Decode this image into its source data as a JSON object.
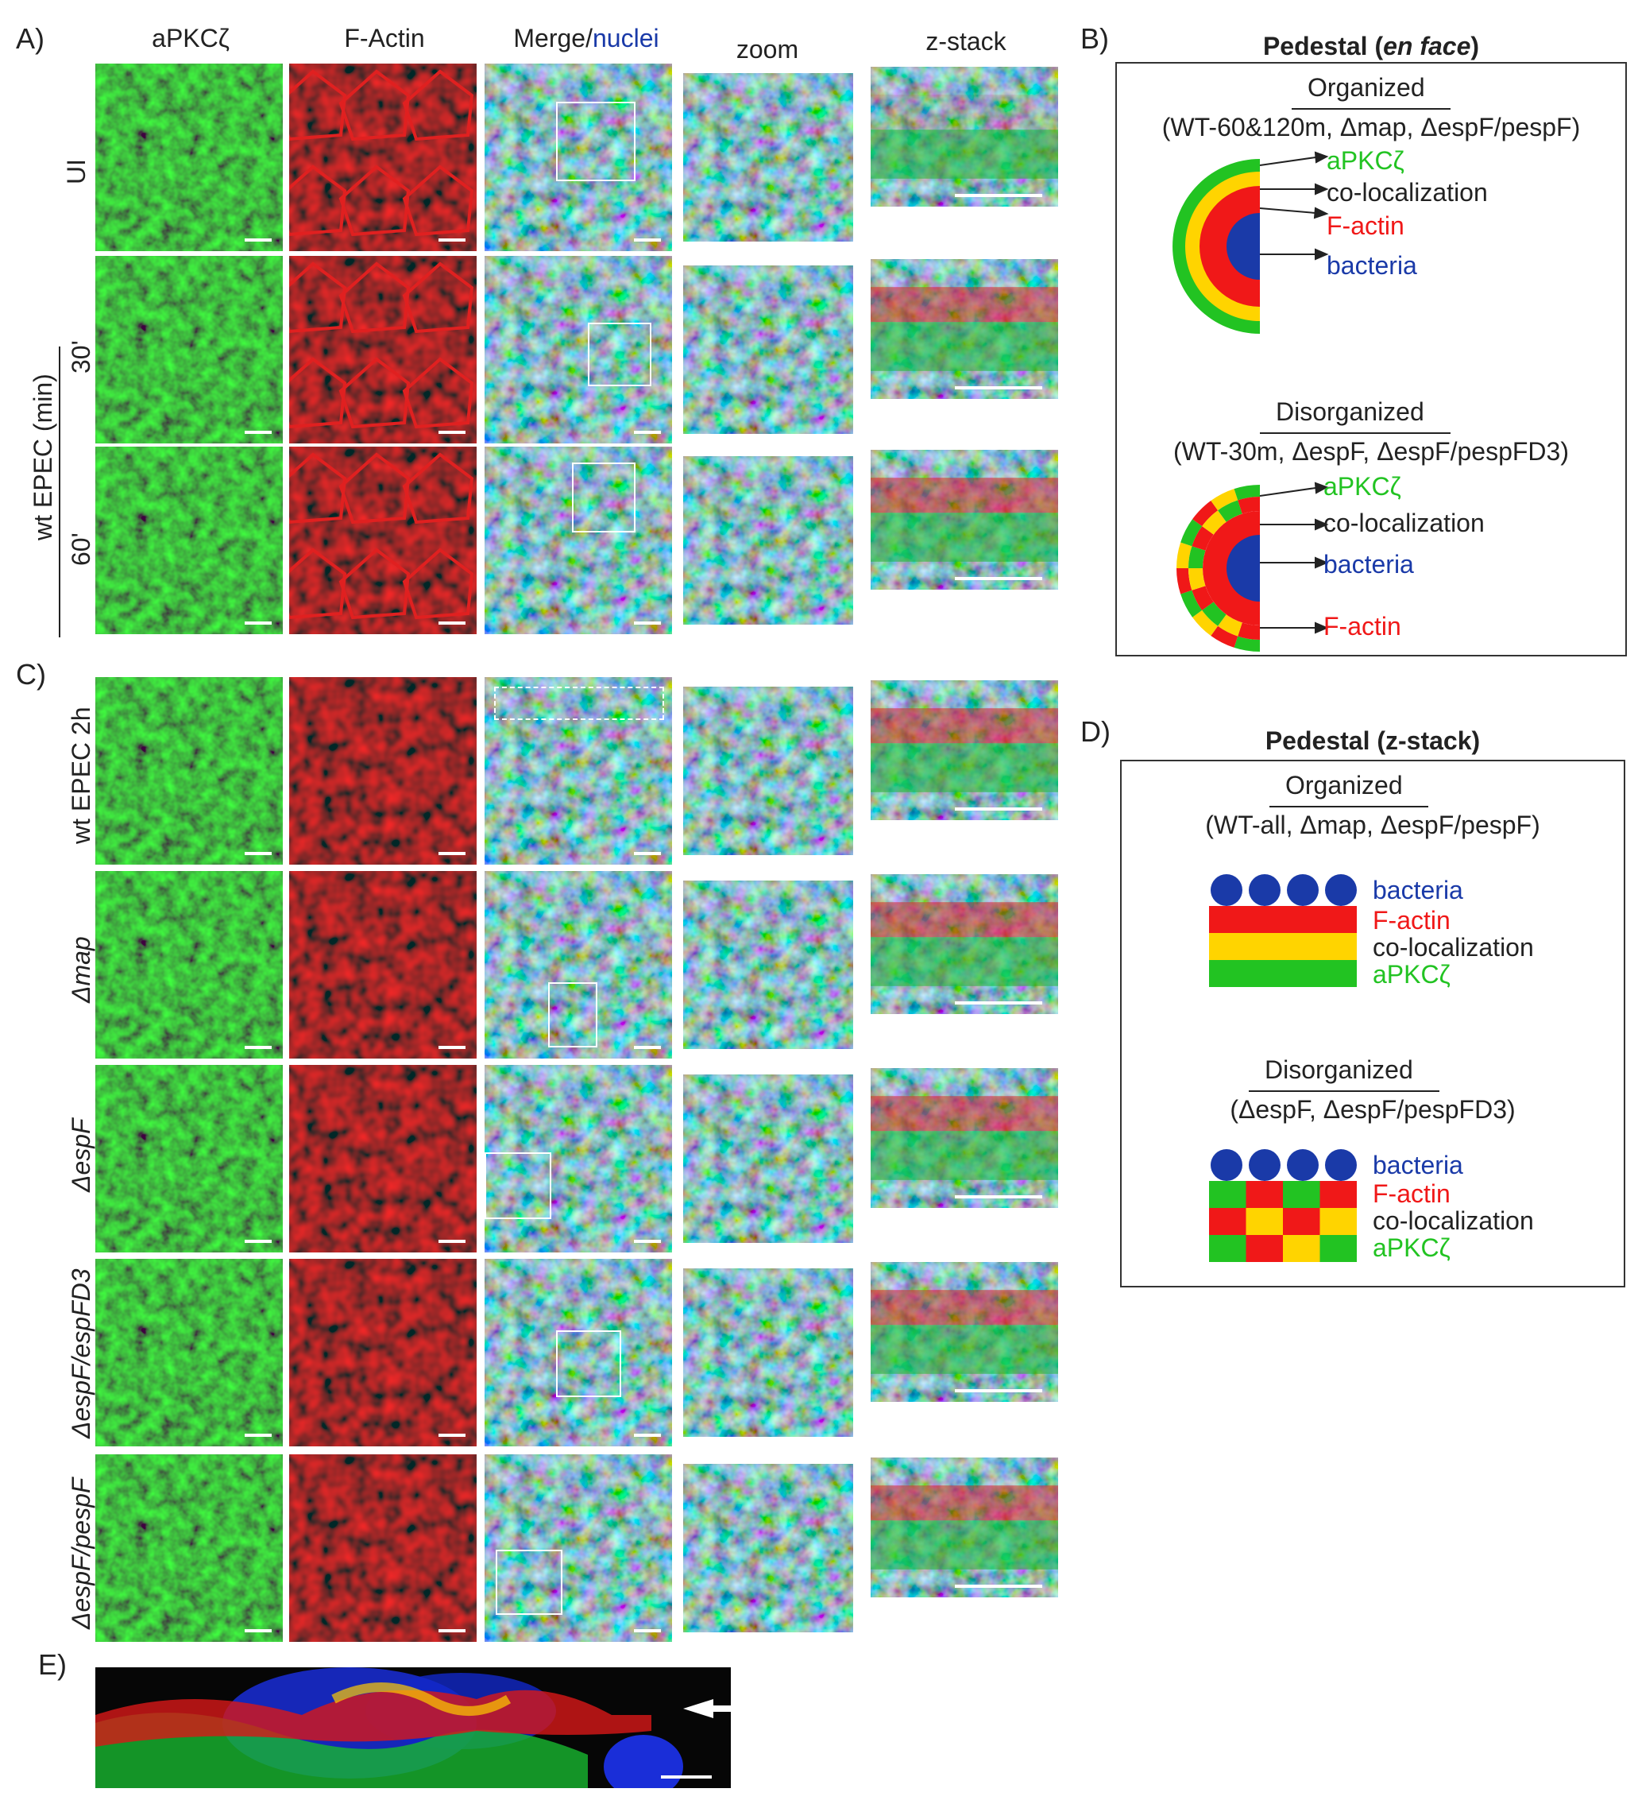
{
  "panels": {
    "A": "A)",
    "B": "B)",
    "C": "C)",
    "D": "D)",
    "E": "E)"
  },
  "columns": {
    "apkc": "aPKCζ",
    "factin": "F-Actin",
    "merge": "Merge/",
    "nuclei": "nuclei",
    "zoom": "zoom",
    "zstack": "z-stack"
  },
  "rows_A": {
    "ui": "UI",
    "group": "wt EPEC (min)",
    "t30": "30'",
    "t60": "60'"
  },
  "rows_C": {
    "wt2h": "wt EPEC 2h",
    "map": "Δmap",
    "espf": "ΔespF",
    "espfd3": "ΔespF/espFD3",
    "pespf": "ΔespF/pespF"
  },
  "boxB": {
    "title_main": "Pedestal (",
    "title_italic": "en face",
    "title_end": ")",
    "org_title": "Organized",
    "org_sub": "(WT-60&120m, Δmap, ΔespF/pespF)",
    "disorg_title": "Disorganized",
    "disorg_sub": "(WT-30m, ΔespF, ΔespF/pespFD3)",
    "apkc": "aPKCζ",
    "coloc": "co-localization",
    "factin": "F-actin",
    "bacteria": "bacteria"
  },
  "boxD": {
    "title": "Pedestal (z-stack)",
    "org_title": "Organized",
    "org_sub": "(WT-all, Δmap, ΔespF/pespF)",
    "disorg_title": "Disorganized",
    "disorg_sub": "(ΔespF, ΔespF/pespFD3)",
    "bacteria": "bacteria",
    "factin": "F-actin",
    "coloc": "co-localization",
    "apkc": "aPKCζ"
  },
  "colors": {
    "green": "#22c322",
    "red": "#f01818",
    "yellow": "#ffd400",
    "blue": "#1a3aa8",
    "image_bg": "#0a0a0a"
  }
}
